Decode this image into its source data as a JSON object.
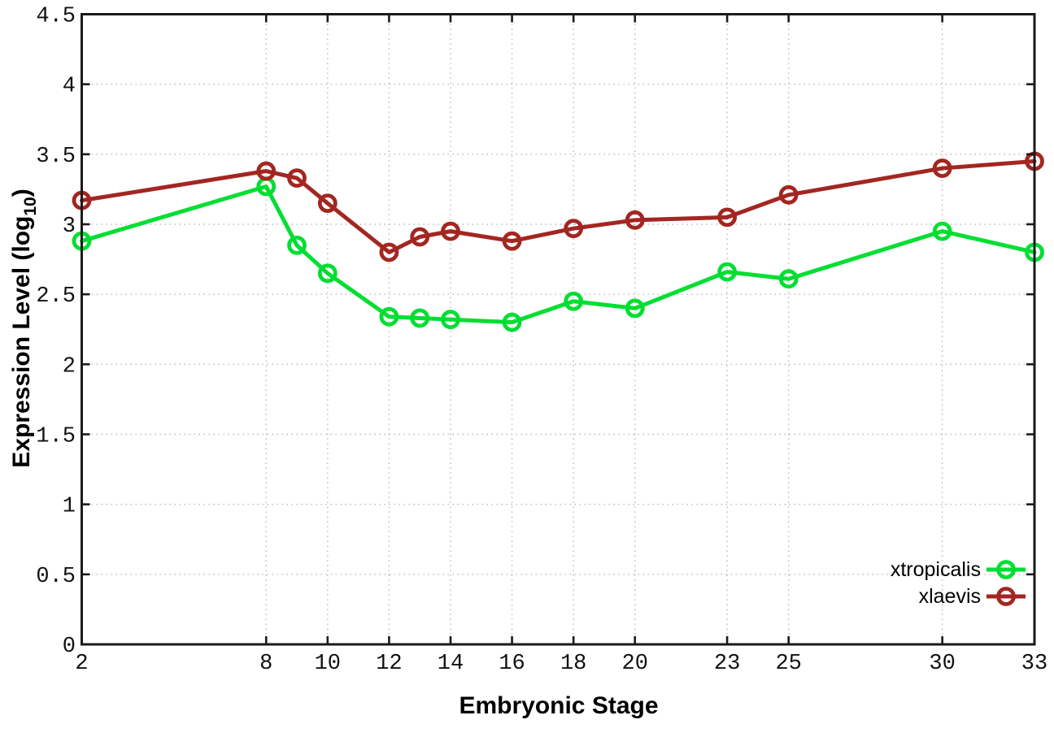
{
  "page": {
    "background": "#ffffff",
    "border_color": "#1a1a1a",
    "grid_color": "#b9b9b9"
  },
  "chart_data": {
    "type": "line",
    "title": "",
    "xlabel": "Embryonic Stage",
    "ylabel": {
      "main": "Expression Level (log",
      "sub": "10",
      "close": ")"
    },
    "xlim": [
      2,
      33
    ],
    "ylim": [
      0,
      4.5
    ],
    "grid": true,
    "legend_position": "bottom-right",
    "x_ticks": [
      {
        "value": 2,
        "label": "2"
      },
      {
        "value": 8,
        "label": "8"
      },
      {
        "value": 10,
        "label": "10"
      },
      {
        "value": 12,
        "label": "12"
      },
      {
        "value": 14,
        "label": "14"
      },
      {
        "value": 16,
        "label": "16"
      },
      {
        "value": 18,
        "label": "18"
      },
      {
        "value": 20,
        "label": "20"
      },
      {
        "value": 23,
        "label": "23"
      },
      {
        "value": 25,
        "label": "25"
      },
      {
        "value": 30,
        "label": "30"
      },
      {
        "value": 33,
        "label": "33"
      }
    ],
    "y_ticks": [
      {
        "value": 0,
        "label": "0"
      },
      {
        "value": 0.5,
        "label": "0.5"
      },
      {
        "value": 1,
        "label": "1"
      },
      {
        "value": 1.5,
        "label": "1.5"
      },
      {
        "value": 2,
        "label": "2"
      },
      {
        "value": 2.5,
        "label": "2.5"
      },
      {
        "value": 3,
        "label": "3"
      },
      {
        "value": 3.5,
        "label": "3.5"
      },
      {
        "value": 4,
        "label": "4"
      },
      {
        "value": 4.5,
        "label": "4.5"
      }
    ],
    "x": [
      2,
      8,
      9,
      10,
      12,
      13,
      14,
      16,
      18,
      20,
      23,
      25,
      30,
      33
    ],
    "series": [
      {
        "name": "xtropicalis",
        "color": "#00de32",
        "marker": "open-circle",
        "values": [
          2.88,
          3.27,
          2.85,
          2.65,
          2.34,
          2.33,
          2.32,
          2.3,
          2.45,
          2.4,
          2.66,
          2.61,
          2.95,
          2.8
        ]
      },
      {
        "name": "xlaevis",
        "color": "#a32621",
        "marker": "open-circle",
        "values": [
          3.17,
          3.38,
          3.33,
          3.15,
          2.8,
          2.91,
          2.95,
          2.88,
          2.97,
          3.03,
          3.05,
          3.21,
          3.4,
          3.45
        ]
      }
    ]
  }
}
